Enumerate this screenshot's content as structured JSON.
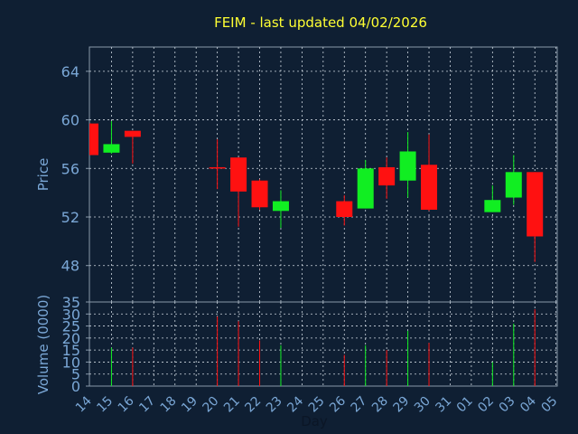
{
  "chart_data": {
    "type": "candlestick",
    "title": "FEIM - last updated 04/02/2026",
    "xlabel": "Day",
    "ylabel_price": "Price",
    "ylabel_volume": "Volume (0000)",
    "grid": true,
    "colors": {
      "background": "#0f1f33",
      "plot_border": "#8899aa",
      "grid": "#cfd8e0",
      "title": "#ffff33",
      "axis_text": "#7aa7d6",
      "up": "#11ee22",
      "down": "#ff1111"
    },
    "x_ticks": [
      "14",
      "15",
      "16",
      "17",
      "18",
      "19",
      "20",
      "21",
      "22",
      "23",
      "24",
      "25",
      "26",
      "27",
      "28",
      "29",
      "30",
      "31",
      "01",
      "02",
      "03",
      "04",
      "05"
    ],
    "price_axis": {
      "ylim": [
        45,
        66
      ],
      "ticks": [
        "48",
        "52",
        "56",
        "60",
        "64"
      ]
    },
    "volume_axis": {
      "ylim": [
        0,
        35
      ],
      "ticks": [
        "0",
        "5",
        "10",
        "15",
        "20",
        "25",
        "30",
        "35"
      ]
    },
    "candles": [
      {
        "day": "14",
        "open": 59.7,
        "close": 57.1,
        "high": 59.7,
        "low": 57.1,
        "volume": 0
      },
      {
        "day": "15",
        "open": 57.3,
        "close": 58.0,
        "high": 59.9,
        "low": 57.2,
        "volume": 16
      },
      {
        "day": "16",
        "open": 59.1,
        "close": 58.6,
        "high": 59.1,
        "low": 56.4,
        "volume": 16
      },
      {
        "day": "20",
        "open": 56.1,
        "close": 56.0,
        "high": 58.4,
        "low": 54.3,
        "volume": 29
      },
      {
        "day": "21",
        "open": 56.9,
        "close": 54.1,
        "high": 56.9,
        "low": 51.2,
        "volume": 27
      },
      {
        "day": "22",
        "open": 55.0,
        "close": 52.8,
        "high": 55.1,
        "low": 52.6,
        "volume": 19
      },
      {
        "day": "23",
        "open": 52.5,
        "close": 53.3,
        "high": 54.2,
        "low": 51.1,
        "volume": 17
      },
      {
        "day": "26",
        "open": 53.3,
        "close": 52.0,
        "high": 53.8,
        "low": 51.3,
        "volume": 13
      },
      {
        "day": "27",
        "open": 52.7,
        "close": 56.0,
        "high": 56.7,
        "low": 52.7,
        "volume": 17
      },
      {
        "day": "28",
        "open": 56.1,
        "close": 54.6,
        "high": 56.9,
        "low": 53.5,
        "volume": 15
      },
      {
        "day": "29",
        "open": 55.0,
        "close": 57.4,
        "high": 59.0,
        "low": 53.6,
        "volume": 23
      },
      {
        "day": "30",
        "open": 56.3,
        "close": 52.6,
        "high": 58.8,
        "low": 52.5,
        "volume": 18
      },
      {
        "day": "02",
        "open": 52.4,
        "close": 53.4,
        "high": 54.6,
        "low": 52.4,
        "volume": 10
      },
      {
        "day": "03",
        "open": 53.6,
        "close": 55.7,
        "high": 57.1,
        "low": 53.0,
        "volume": 26
      },
      {
        "day": "04",
        "open": 55.7,
        "close": 50.4,
        "high": 55.7,
        "low": 48.3,
        "volume": 32
      }
    ]
  }
}
